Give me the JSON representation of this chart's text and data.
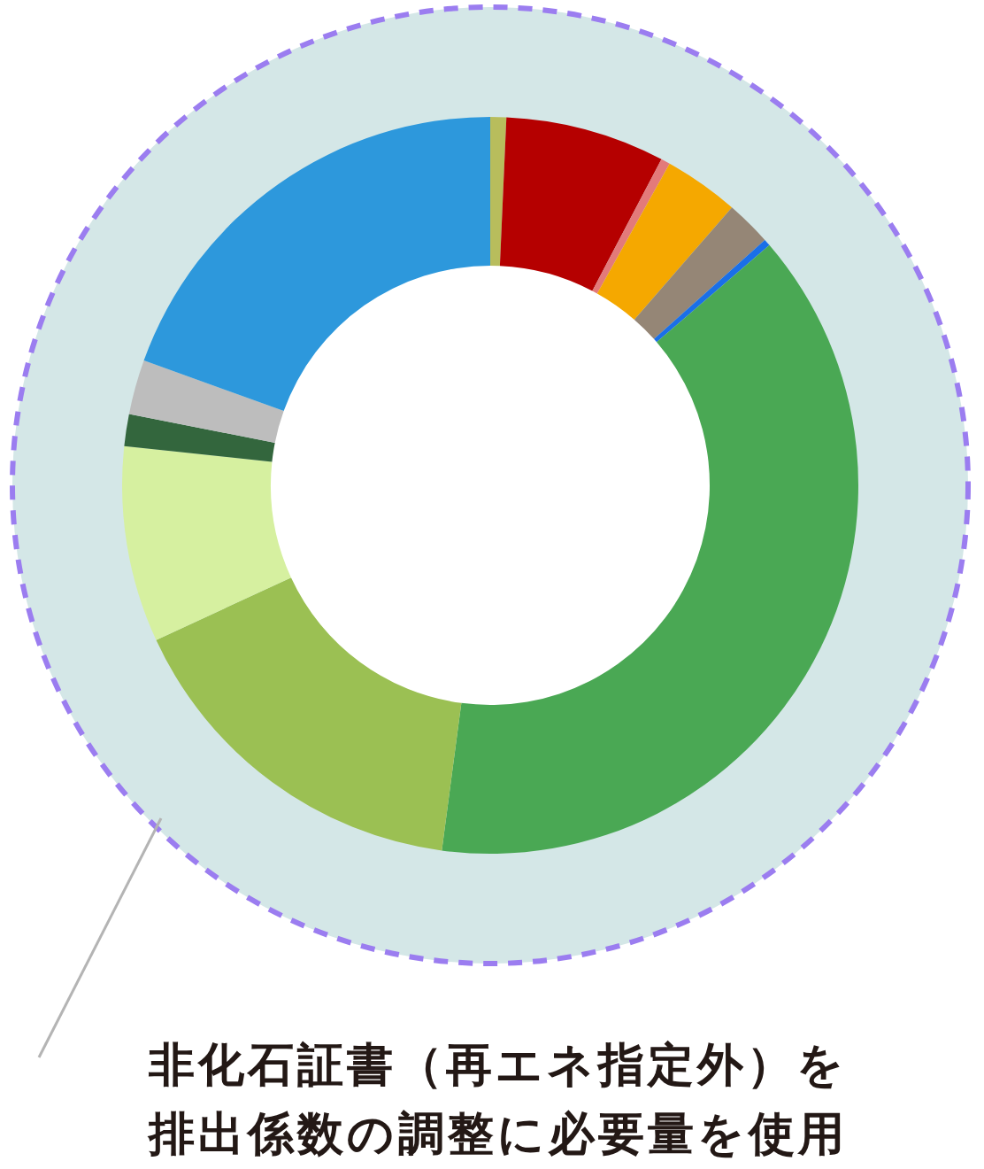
{
  "chart_data": {
    "type": "donut",
    "categories": [
      null,
      null,
      null,
      null,
      null,
      null,
      null,
      null,
      null,
      null,
      null,
      null
    ],
    "values": [
      0.7,
      7.0,
      0.4,
      3.3,
      2.0,
      0.3,
      38.4,
      16.0,
      8.6,
      1.4,
      2.4,
      19.5
    ],
    "colors": [
      "#b8bd5c",
      "#b50000",
      "#e37a7a",
      "#f5a800",
      "#958676",
      "#1a6fe8",
      "#4aa854",
      "#9bc053",
      "#d6f0a0",
      "#33663d",
      "#bdbdbd",
      "#2d98dc"
    ],
    "annotations": [
      "非化石証書（再エネ指定外）を排出係数の調整に必要量を使用"
    ]
  }
}
